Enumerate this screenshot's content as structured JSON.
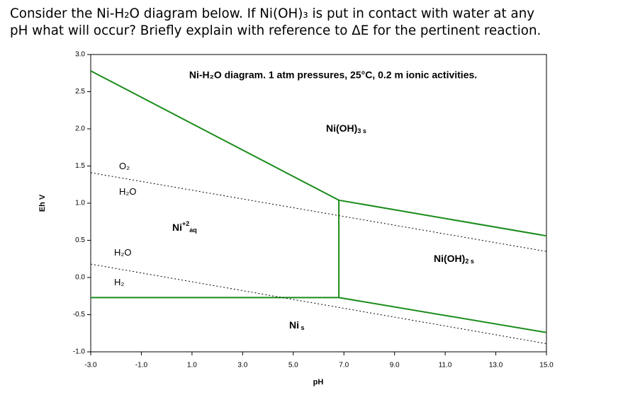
{
  "question": {
    "lines": [
      "Consider the Ni-H₂O diagram below. If Ni(OH)₃ is put in contact with water at any",
      "pH what will occur? Briefly explain with reference to ΔE for the pertinent reaction."
    ]
  },
  "chart_data": {
    "type": "line",
    "title": "Ni-H₂O diagram. 1 atm pressures, 25°C, 0.2 m ionic activities.",
    "x_label": "pH",
    "y_label": "Eh V",
    "xlim": [
      -3,
      15
    ],
    "ylim": [
      -1,
      3
    ],
    "xticks": [
      {
        "value": -3,
        "label": "-3.0"
      },
      {
        "value": -1,
        "label": "-1.0"
      },
      {
        "value": 1,
        "label": "1.0"
      },
      {
        "value": 3,
        "label": "3.0"
      },
      {
        "value": 5,
        "label": "5.0"
      },
      {
        "value": 7,
        "label": "7.0"
      },
      {
        "value": 9,
        "label": "9.0"
      },
      {
        "value": 11,
        "label": "11.0"
      },
      {
        "value": 13,
        "label": "13.0"
      },
      {
        "value": 15,
        "label": "15.0"
      }
    ],
    "yticks": [
      {
        "value": -1,
        "label": "-1.0"
      },
      {
        "value": -0.5,
        "label": "-0.5"
      },
      {
        "value": 0,
        "label": "0.0"
      },
      {
        "value": 0.5,
        "label": "0.5"
      },
      {
        "value": 1,
        "label": "1.0"
      },
      {
        "value": 1.5,
        "label": "1.5"
      },
      {
        "value": 2,
        "label": "2.0"
      },
      {
        "value": 2.5,
        "label": "2.5"
      },
      {
        "value": 3,
        "label": "3.0"
      }
    ],
    "series": [
      {
        "color": "#1b8c1b",
        "dashed": false,
        "x": [
          -3,
          6.8,
          15
        ],
        "values": [
          2.78,
          1.04,
          0.56
        ]
      },
      {
        "color": "#1b8c1b",
        "dashed": false,
        "x": [
          6.8,
          6.8
        ],
        "values": [
          1.04,
          -0.27
        ]
      },
      {
        "color": "#1b8c1b",
        "dashed": false,
        "x": [
          -3,
          6.8,
          15
        ],
        "values": [
          -0.27,
          -0.27,
          -0.74
        ]
      },
      {
        "color": "#000000",
        "dashed": true,
        "x": [
          -3,
          15
        ],
        "values": [
          1.41,
          0.35
        ]
      },
      {
        "color": "#000000",
        "dashed": true,
        "x": [
          -3,
          15
        ],
        "values": [
          0.18,
          -0.89
        ]
      }
    ],
    "annotations": [
      [
        {
          "t": "Ni(OH)"
        },
        {
          "t": "3 s",
          "pos": "sub"
        }
      ],
      [
        {
          "t": "Ni"
        },
        {
          "t": "+2",
          "pos": "sup"
        },
        {
          "t": "aq",
          "pos": "sub"
        }
      ],
      [
        {
          "t": "Ni(OH)"
        },
        {
          "t": "2 s",
          "pos": "sub"
        }
      ],
      [
        {
          "t": "Ni"
        },
        {
          "t": " s",
          "pos": "sub"
        }
      ],
      [
        {
          "t": "O₂"
        }
      ],
      [
        {
          "t": "H₂O"
        }
      ],
      [
        {
          "t": "H₂O"
        }
      ],
      [
        {
          "t": "H₂"
        }
      ]
    ]
  }
}
